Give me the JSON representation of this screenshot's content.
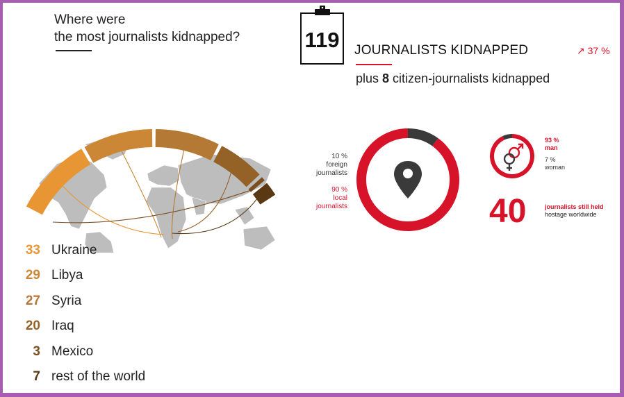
{
  "question": {
    "line1": "Where were",
    "line2": "the most journalists kidnapped?"
  },
  "headline": {
    "count": "119",
    "label": "JOURNALISTS KIDNAPPED",
    "trend": "↗ 37 %",
    "plus_prefix": "plus ",
    "plus_count": "8",
    "plus_suffix": " citizen-journalists kidnapped"
  },
  "origin": {
    "foreign_pct": "10 %",
    "foreign_l1": "foreign",
    "foreign_l2": "journalists",
    "local_pct": "90 %",
    "local_l1": "local",
    "local_l2": "journalists"
  },
  "gender": {
    "man_pct": "93 %",
    "man_label": "man",
    "woman_pct": "7 %",
    "woman_label": "woman"
  },
  "hostages": {
    "count": "40",
    "line1": "journalists still held",
    "line2": "hostage worldwide"
  },
  "colors": {
    "red": "#d7132a",
    "dark": "#3a3a3a",
    "map": "#bdbdbd"
  },
  "icons": [
    "clipboard-icon",
    "trend-up-icon",
    "location-pin-icon",
    "gender-icon"
  ],
  "chart_data": [
    {
      "type": "pie",
      "categories": [
        "Ukraine",
        "Libya",
        "Syria",
        "Iraq",
        "Mexico",
        "rest of the world"
      ],
      "values": [
        33,
        29,
        27,
        20,
        3,
        7
      ],
      "colors": [
        "#e89634",
        "#cc8736",
        "#b47a35",
        "#946127",
        "#7a4e20",
        "#5a3814"
      ]
    },
    {
      "type": "pie",
      "categories": [
        "foreign journalists",
        "local journalists"
      ],
      "values": [
        10,
        90
      ],
      "colors": [
        "#3a3a3a",
        "#d7132a"
      ]
    },
    {
      "type": "pie",
      "categories": [
        "man",
        "woman"
      ],
      "values": [
        93,
        7
      ],
      "colors": [
        "#d7132a",
        "#3a3a3a"
      ]
    }
  ]
}
